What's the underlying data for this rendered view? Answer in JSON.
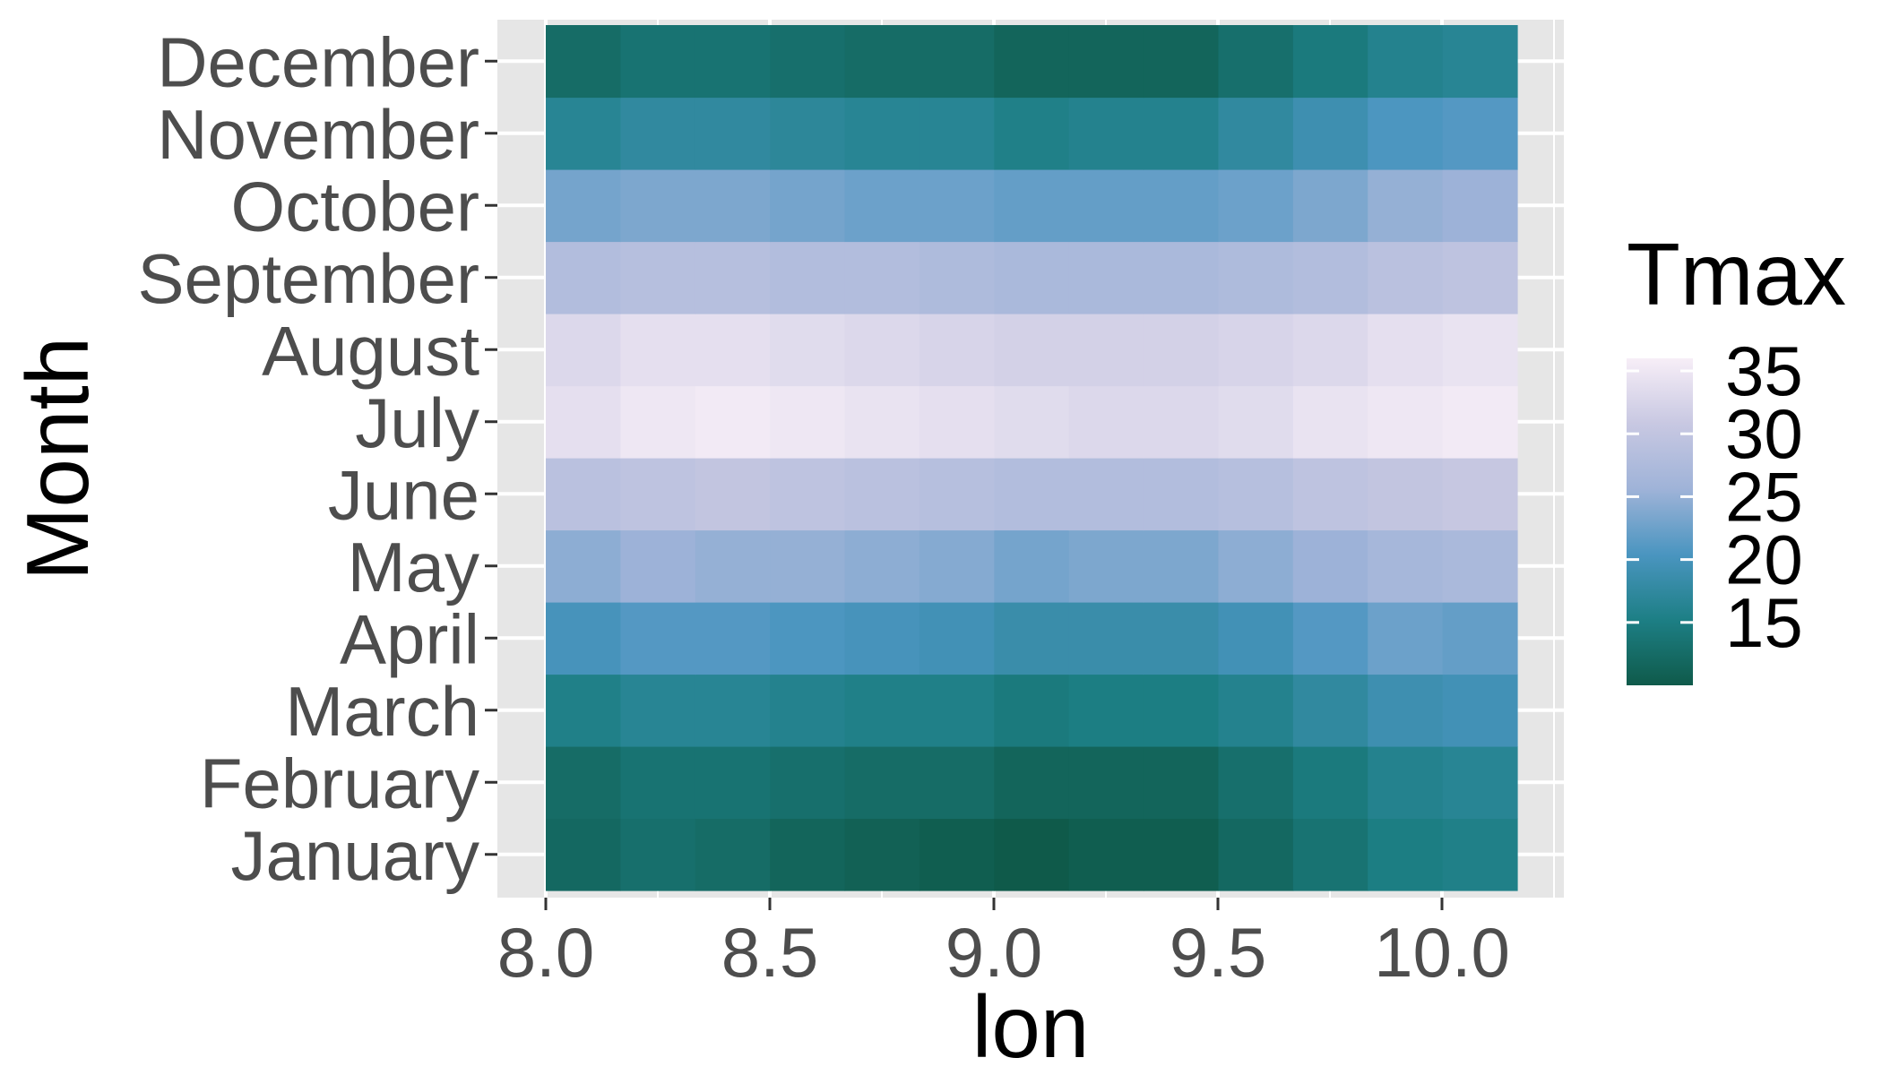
{
  "chart_data": {
    "type": "heatmap",
    "title": "",
    "xlabel": "lon",
    "ylabel": "Month",
    "x": [
      8.0,
      8.1667,
      8.3333,
      8.5,
      8.6667,
      8.8333,
      9.0,
      9.1667,
      9.3333,
      9.5,
      9.6667,
      9.8333,
      10.0
    ],
    "x_ticks": [
      "8.0",
      "8.5",
      "9.0",
      "9.5",
      "10.0"
    ],
    "xlim": [
      7.9,
      10.25
    ],
    "y": [
      "January",
      "February",
      "March",
      "April",
      "May",
      "June",
      "July",
      "August",
      "September",
      "October",
      "November",
      "December"
    ],
    "z": [
      [
        12.0,
        13.0,
        12.5,
        11.5,
        11.0,
        10.5,
        10.0,
        10.5,
        10.5,
        12.0,
        13.5,
        15.0,
        15.5
      ],
      [
        12.5,
        13.5,
        13.5,
        13.0,
        12.5,
        12.5,
        11.5,
        11.5,
        11.5,
        13.0,
        14.5,
        16.0,
        16.5
      ],
      [
        15.5,
        16.5,
        16.5,
        16.0,
        15.5,
        15.5,
        14.5,
        15.0,
        15.0,
        16.0,
        17.5,
        19.0,
        19.5
      ],
      [
        20.0,
        21.0,
        21.0,
        20.5,
        20.0,
        19.5,
        18.5,
        18.5,
        18.5,
        19.5,
        21.0,
        22.5,
        22.0
      ],
      [
        24.5,
        25.5,
        25.0,
        25.0,
        24.5,
        24.0,
        23.0,
        23.5,
        23.5,
        24.5,
        25.5,
        26.5,
        27.0
      ],
      [
        29.0,
        29.5,
        30.0,
        29.5,
        29.0,
        28.5,
        28.0,
        28.0,
        28.0,
        28.5,
        29.5,
        30.0,
        30.5
      ],
      [
        34.0,
        35.0,
        35.5,
        35.0,
        34.5,
        34.0,
        33.5,
        33.0,
        33.0,
        33.5,
        34.5,
        35.0,
        35.5
      ],
      [
        33.0,
        34.0,
        34.0,
        33.5,
        33.0,
        32.5,
        32.0,
        32.0,
        32.0,
        32.5,
        33.0,
        34.0,
        34.5
      ],
      [
        28.0,
        28.5,
        28.5,
        28.0,
        28.0,
        27.5,
        27.0,
        27.0,
        27.0,
        27.5,
        28.0,
        29.0,
        29.5
      ],
      [
        23.0,
        23.5,
        23.5,
        23.0,
        22.5,
        22.5,
        22.0,
        22.0,
        22.0,
        22.5,
        23.5,
        25.0,
        25.5
      ],
      [
        16.5,
        17.5,
        17.5,
        17.0,
        16.5,
        16.5,
        15.5,
        16.0,
        16.0,
        17.5,
        19.0,
        20.5,
        21.0
      ],
      [
        12.5,
        13.5,
        13.5,
        13.0,
        12.5,
        12.5,
        11.5,
        11.5,
        11.5,
        13.0,
        14.5,
        16.0,
        16.5
      ]
    ],
    "legend": {
      "title": "Tmax",
      "position": "right",
      "min": 10,
      "max": 36,
      "ticks": [
        15,
        20,
        25,
        30,
        35
      ],
      "colors": [
        "#0f5a4a",
        "#1d7f85",
        "#4a95c0",
        "#9fb3d8",
        "#c8c8e2",
        "#f7eef7"
      ]
    },
    "grid": true,
    "panel_background": "#e6e6e6",
    "grid_color": "#ffffff"
  }
}
